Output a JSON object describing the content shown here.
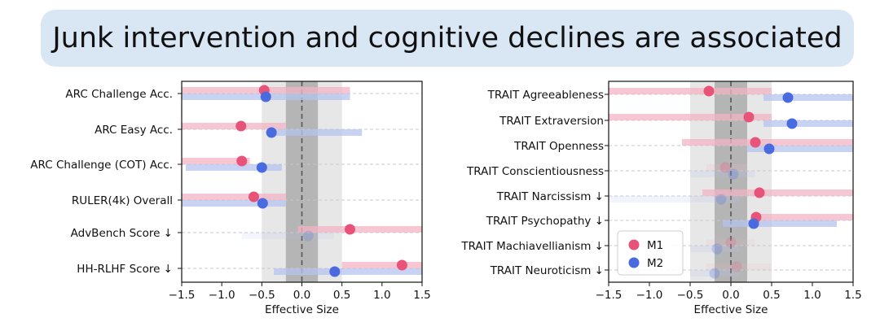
{
  "banner": {
    "title": "Junk intervention and cognitive declines are associated"
  },
  "colors": {
    "m1": "#e8537a",
    "m2": "#4a6be0",
    "m1_band": "#f3b3c3",
    "m2_band": "#b5c3ef"
  },
  "chart_data": [
    {
      "type": "forest",
      "xlabel": "Effective Size",
      "xlim": [
        -1.5,
        1.5
      ],
      "xticks": [
        "−1.5",
        "−1.0",
        "−0.5",
        "0.0",
        "0.5",
        "1.0",
        "1.5"
      ],
      "shaded_regions": [
        {
          "from": -0.5,
          "to": 0.5
        },
        {
          "from": -0.2,
          "to": 0.2
        }
      ],
      "reference_line": 0,
      "categories": [
        "ARC Challenge Acc.",
        "ARC Easy Acc.",
        "ARC Challenge (COT) Acc.",
        "RULER(4k) Overall",
        "AdvBench Score ↓",
        "HH-RLHF Score ↓"
      ],
      "series": [
        {
          "name": "M1",
          "values": [
            -0.47,
            -0.76,
            -0.75,
            -0.6,
            0.6,
            1.25
          ],
          "ranges": [
            [
              -1.5,
              0.6
            ],
            [
              -1.5,
              -0.2
            ],
            [
              -1.5,
              -0.65
            ],
            [
              -1.5,
              -0.2
            ],
            [
              -0.05,
              1.5
            ],
            [
              0.5,
              1.5
            ]
          ],
          "opacity": [
            1,
            1,
            1,
            1,
            1,
            1
          ]
        },
        {
          "name": "M2",
          "values": [
            -0.45,
            -0.38,
            -0.5,
            -0.49,
            0.08,
            0.41
          ],
          "ranges": [
            [
              -1.5,
              0.6
            ],
            [
              -0.4,
              0.75
            ],
            [
              -1.45,
              -0.25
            ],
            [
              -1.5,
              -0.2
            ],
            [
              -0.75,
              0.4
            ],
            [
              -0.35,
              1.5
            ]
          ],
          "opacity": [
            1,
            1,
            1,
            1,
            0.2,
            1
          ]
        }
      ]
    },
    {
      "type": "forest",
      "xlabel": "Effective Size",
      "xlim": [
        -1.5,
        1.5
      ],
      "xticks": [
        "−1.5",
        "−1.0",
        "−0.5",
        "0.0",
        "0.5",
        "1.0",
        "1.5"
      ],
      "shaded_regions": [
        {
          "from": -0.5,
          "to": 0.5
        },
        {
          "from": -0.2,
          "to": 0.2
        }
      ],
      "reference_line": 0,
      "categories": [
        "TRAIT Agreeableness",
        "TRAIT Extraversion",
        "TRAIT Openness",
        "TRAIT Conscientiousness",
        "TRAIT Narcissism ↓",
        "TRAIT Psychopathy ↓",
        "TRAIT Machiavellianism ↓",
        "TRAIT Neuroticism ↓"
      ],
      "legend": {
        "position": "bottom-left",
        "entries": [
          "M1",
          "M2"
        ]
      },
      "series": [
        {
          "name": "M1",
          "values": [
            -0.27,
            0.22,
            0.3,
            -0.07,
            0.35,
            0.31,
            0.0,
            0.07
          ],
          "ranges": [
            [
              -1.5,
              0.5
            ],
            [
              -1.5,
              0.5
            ],
            [
              -0.6,
              1.5
            ],
            [
              -0.3,
              0.2
            ],
            [
              -0.35,
              1.5
            ],
            [
              0.25,
              1.5
            ],
            [
              -0.3,
              0.3
            ],
            [
              -0.3,
              0.5
            ]
          ],
          "opacity": [
            1,
            1,
            1,
            0.25,
            1,
            1,
            0.2,
            0.2
          ]
        },
        {
          "name": "M2",
          "values": [
            0.7,
            0.75,
            0.47,
            0.03,
            -0.12,
            0.28,
            -0.17,
            -0.2
          ],
          "ranges": [
            [
              0.4,
              1.5
            ],
            [
              0.4,
              1.5
            ],
            [
              0.2,
              1.5
            ],
            [
              -0.5,
              0.3
            ],
            [
              -1.5,
              0.1
            ],
            [
              -0.1,
              1.3
            ],
            [
              -0.5,
              0.1
            ],
            [
              -0.5,
              0.1
            ]
          ],
          "opacity": [
            1,
            1,
            1,
            0.25,
            0.25,
            1,
            0.25,
            0.25
          ]
        }
      ]
    }
  ]
}
